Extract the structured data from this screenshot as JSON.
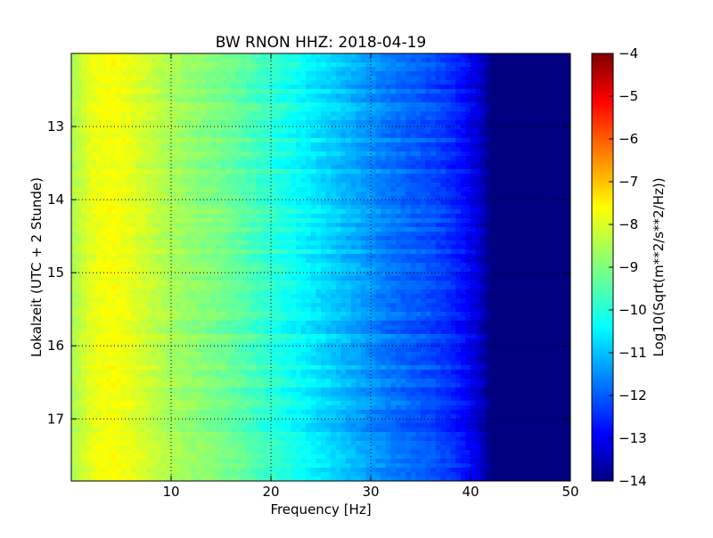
{
  "chart_data": {
    "type": "heatmap",
    "title": "BW RNON HHZ: 2018-04-19",
    "xlabel": "Frequency [Hz]",
    "ylabel": "Lokalzeit (UTC + 2 Stunde)",
    "colorbar_label": "Log10(Sqrt(m**2/s**2/Hz))",
    "xlim": [
      0,
      50
    ],
    "ylim": [
      12.0,
      17.85
    ],
    "y_inverted": true,
    "x_ticks": [
      10,
      20,
      30,
      40,
      50
    ],
    "y_ticks": [
      13,
      14,
      15,
      16,
      17
    ],
    "grid": true,
    "colormap": "jet",
    "color_range": [
      -14,
      -4
    ],
    "colorbar_ticks": [
      -4,
      -5,
      -6,
      -7,
      -8,
      -9,
      -10,
      -11,
      -12,
      -13,
      -14
    ],
    "spectrum_profile": {
      "frequency_hz": [
        0,
        2,
        4,
        6,
        8,
        10,
        12,
        14,
        16,
        18,
        20,
        22,
        24,
        26,
        28,
        30,
        32,
        34,
        36,
        38,
        40,
        41,
        42,
        43,
        50
      ],
      "log10_amplitude": [
        -8.6,
        -8.0,
        -7.8,
        -8.0,
        -8.3,
        -8.6,
        -8.8,
        -9.0,
        -9.2,
        -9.5,
        -9.8,
        -10.1,
        -10.4,
        -10.7,
        -11.0,
        -11.3,
        -11.6,
        -11.8,
        -12.0,
        -12.3,
        -12.8,
        -13.3,
        -14.0,
        -14.0,
        -14.0
      ]
    }
  }
}
